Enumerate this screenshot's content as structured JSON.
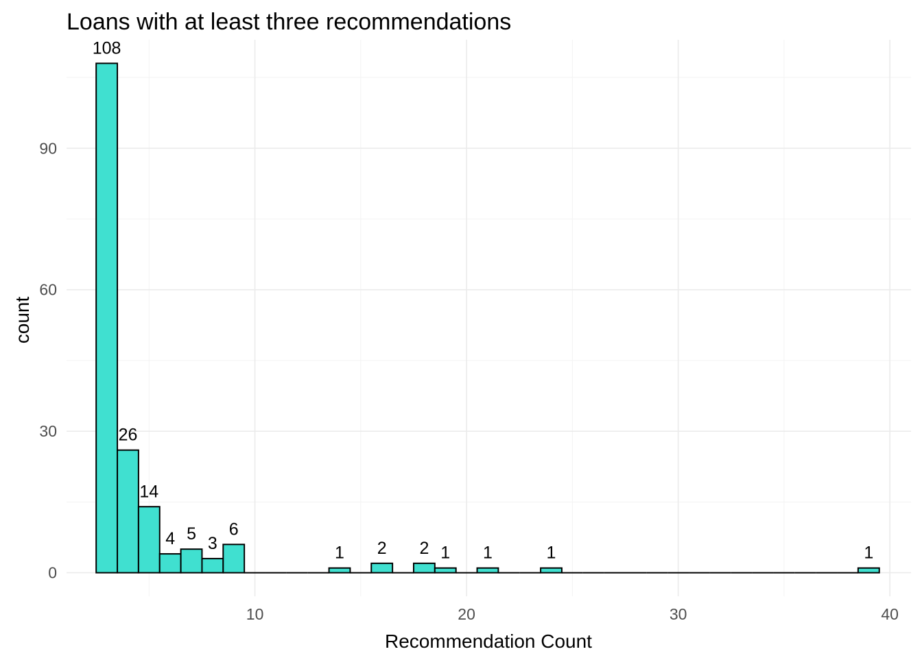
{
  "chart_data": {
    "type": "bar",
    "title": "Loans with at least three recommendations",
    "xlabel": "Recommendation Count",
    "ylabel": "count",
    "xlim": [
      1.1,
      41
    ],
    "ylim": [
      -5,
      113
    ],
    "x_ticks": [
      10,
      20,
      30,
      40
    ],
    "x_minor_ticks": [
      5,
      15,
      25,
      35
    ],
    "y_ticks": [
      0,
      30,
      60,
      90
    ],
    "y_minor_ticks": [
      15,
      45,
      75,
      105
    ],
    "bin_width": 1,
    "bins": [
      {
        "x": 3,
        "count": 108
      },
      {
        "x": 4,
        "count": 26
      },
      {
        "x": 5,
        "count": 14
      },
      {
        "x": 6,
        "count": 4
      },
      {
        "x": 7,
        "count": 5
      },
      {
        "x": 8,
        "count": 3
      },
      {
        "x": 9,
        "count": 6
      },
      {
        "x": 10,
        "count": 0
      },
      {
        "x": 11,
        "count": 0
      },
      {
        "x": 12,
        "count": 0
      },
      {
        "x": 13,
        "count": 0
      },
      {
        "x": 14,
        "count": 1
      },
      {
        "x": 15,
        "count": 0
      },
      {
        "x": 16,
        "count": 2
      },
      {
        "x": 17,
        "count": 0
      },
      {
        "x": 18,
        "count": 2
      },
      {
        "x": 19,
        "count": 1
      },
      {
        "x": 20,
        "count": 0
      },
      {
        "x": 21,
        "count": 1
      },
      {
        "x": 22,
        "count": 0
      },
      {
        "x": 23,
        "count": 0
      },
      {
        "x": 24,
        "count": 1
      },
      {
        "x": 25,
        "count": 0
      },
      {
        "x": 26,
        "count": 0
      },
      {
        "x": 27,
        "count": 0
      },
      {
        "x": 28,
        "count": 0
      },
      {
        "x": 29,
        "count": 0
      },
      {
        "x": 30,
        "count": 0
      },
      {
        "x": 31,
        "count": 0
      },
      {
        "x": 32,
        "count": 0
      },
      {
        "x": 33,
        "count": 0
      },
      {
        "x": 34,
        "count": 0
      },
      {
        "x": 35,
        "count": 0
      },
      {
        "x": 36,
        "count": 0
      },
      {
        "x": 37,
        "count": 0
      },
      {
        "x": 38,
        "count": 0
      },
      {
        "x": 39,
        "count": 1
      }
    ],
    "grid": true,
    "colors": {
      "bar_fill": "#40e0d0",
      "bar_stroke": "#000000"
    }
  }
}
